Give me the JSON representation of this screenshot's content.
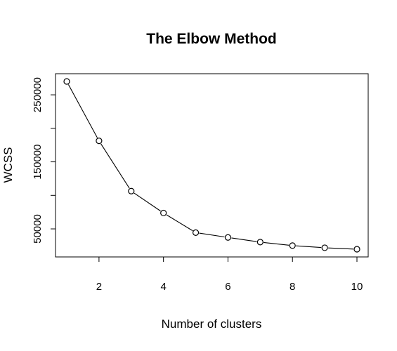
{
  "chart_data": {
    "type": "line",
    "title": "The Elbow Method",
    "xlabel": "Number of clusters",
    "ylabel": "WCSS",
    "x": [
      1,
      2,
      3,
      4,
      5,
      6,
      7,
      8,
      9,
      10
    ],
    "series": [
      {
        "name": "WCSS",
        "values": [
          269981,
          181364,
          106348,
          73679,
          44448,
          37233,
          30259,
          25012,
          21851,
          19672
        ]
      }
    ],
    "xlim": [
      1,
      10
    ],
    "ylim": [
      19672,
      269981
    ],
    "xticks": [
      2,
      4,
      6,
      8,
      10
    ],
    "xtick_labels": [
      "2",
      "4",
      "6",
      "8",
      "10"
    ],
    "yticks": [
      50000,
      100000,
      150000,
      200000,
      250000
    ],
    "ytick_labels": [
      "50000",
      "",
      "150000",
      "",
      "250000"
    ],
    "grid": false,
    "legend": "none",
    "marker": "open-circle",
    "colors": {
      "line": "#000000",
      "marker_stroke": "#000000",
      "marker_fill": "#ffffff",
      "background": "#ffffff"
    }
  }
}
